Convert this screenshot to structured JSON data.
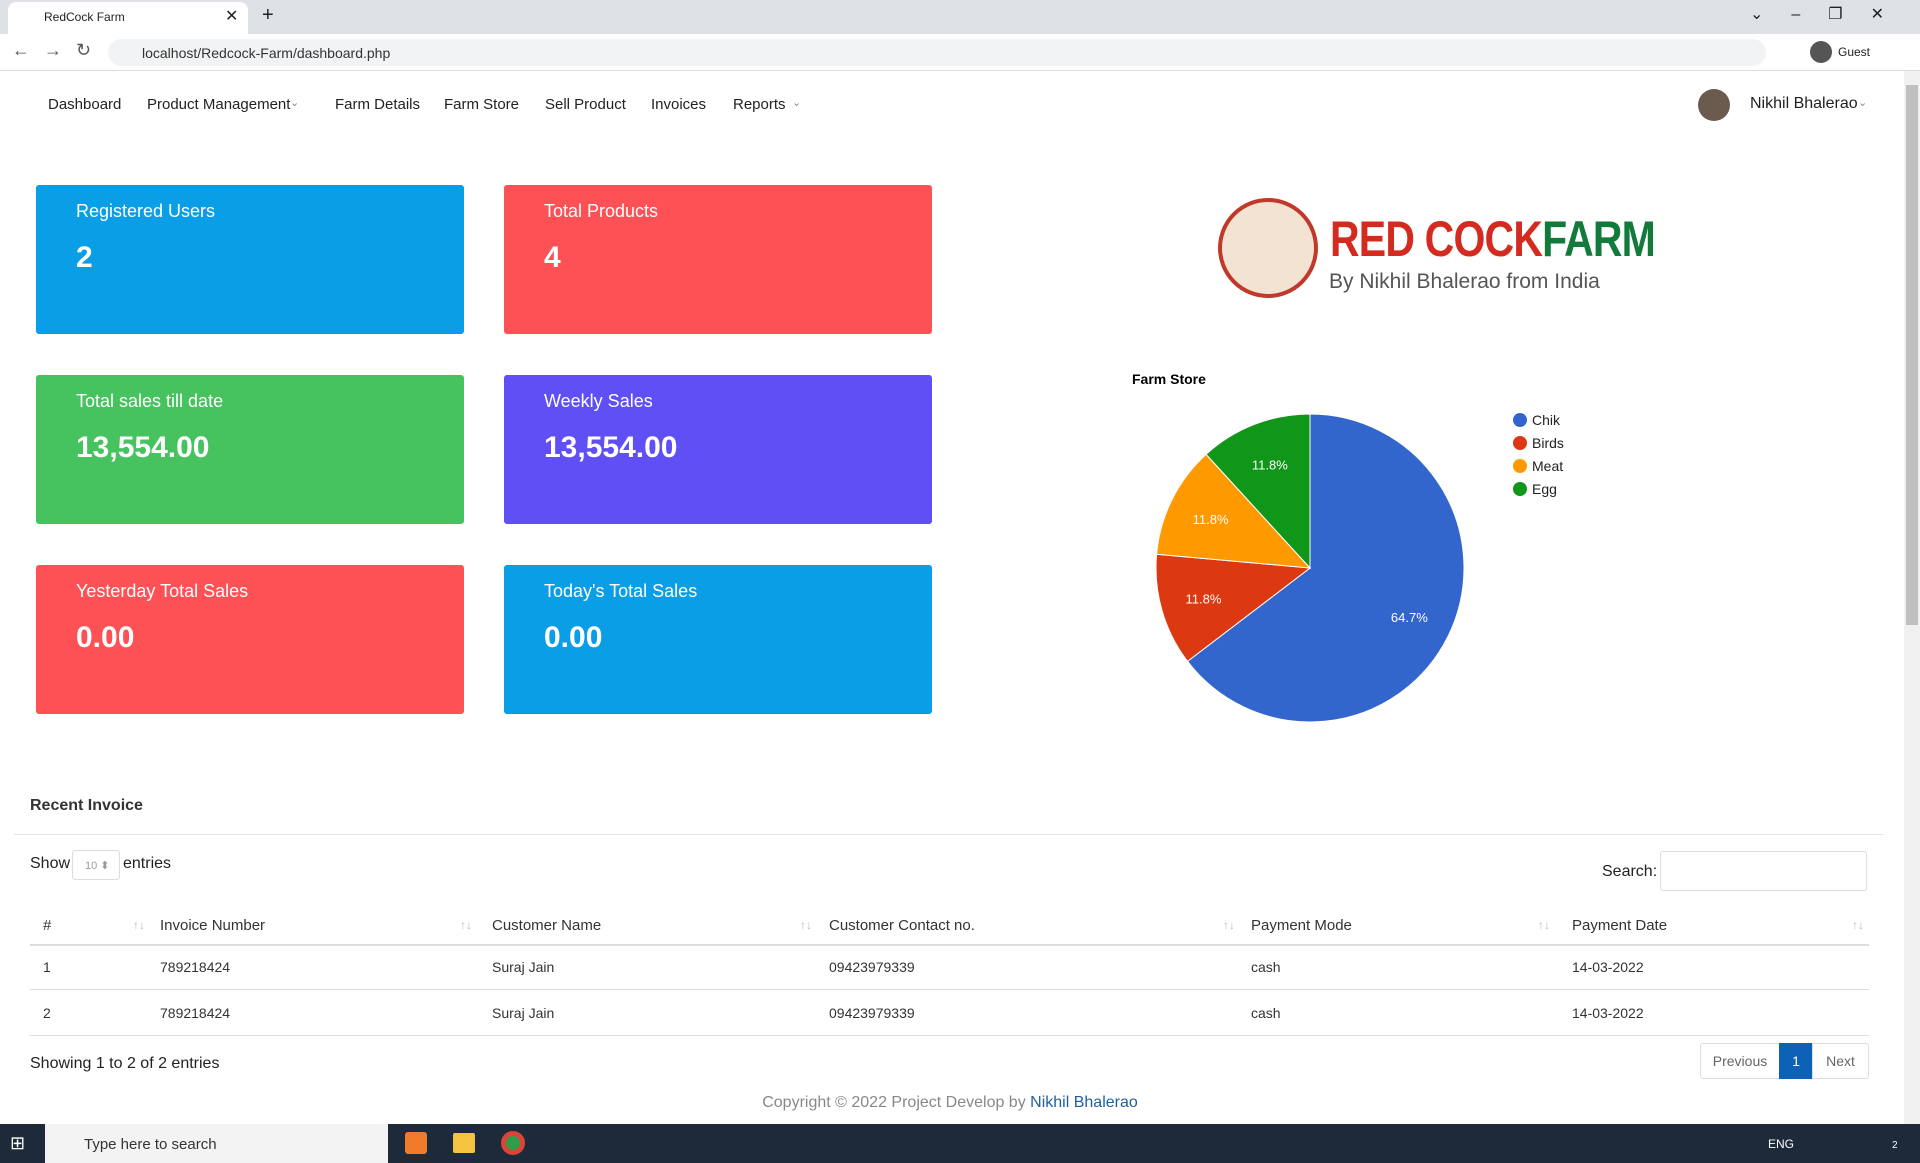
{
  "browser": {
    "tab_title": "RedCock Farm",
    "url": "localhost/Redcock-Farm/dashboard.php",
    "profile": "Guest"
  },
  "nav": {
    "items": [
      "Dashboard",
      "Product Management",
      "Farm Details",
      "Farm Store",
      "Sell Product",
      "Invoices",
      "Reports"
    ],
    "user": "Nikhil Bhalerao"
  },
  "cards": [
    {
      "label": "Registered Users",
      "value": "2"
    },
    {
      "label": "Total Products",
      "value": "4"
    },
    {
      "label": "Total sales till date",
      "value": "13,554.00"
    },
    {
      "label": "Weekly Sales",
      "value": "13,554.00"
    },
    {
      "label": "Yesterday Total Sales",
      "value": "0.00"
    },
    {
      "label": "Today's Total Sales",
      "value": "0.00"
    }
  ],
  "logo": {
    "title_red": "RED COCK",
    "title_green": "FARM",
    "tagline": "By Nikhil Bhalerao from India"
  },
  "chart_data": {
    "type": "pie",
    "title": "Farm Store",
    "categories": [
      "Chik",
      "Birds",
      "Meat",
      "Egg"
    ],
    "values": [
      64.7,
      11.8,
      11.8,
      11.8
    ],
    "value_labels": [
      "64.7%",
      "11.8%",
      "11.8%",
      "11.8%"
    ],
    "colors": [
      "#3366cc",
      "#dc3912",
      "#ff9900",
      "#109618"
    ],
    "legend": "right"
  },
  "invoice": {
    "title": "Recent Invoice",
    "show": "Show",
    "page_size": "10",
    "entries": "entries",
    "search": "Search:",
    "columns": [
      "#",
      "Invoice Number",
      "Customer Name",
      "Customer Contact no.",
      "Payment Mode",
      "Payment Date"
    ],
    "rows": [
      [
        "1",
        "789218424",
        "Suraj Jain",
        "09423979339",
        "cash",
        "14-03-2022"
      ],
      [
        "2",
        "789218424",
        "Suraj Jain",
        "09423979339",
        "cash",
        "14-03-2022"
      ]
    ],
    "info": "Showing 1 to 2 of 2 entries",
    "pagination": [
      "Previous",
      "1",
      "Next"
    ]
  },
  "footer": {
    "text": "Copyright © 2022 Project Develop by",
    "author": "Nikhil Bhalerao"
  },
  "taskbar": {
    "search": "Type here to search",
    "lang": "ENG",
    "badge": "2"
  }
}
